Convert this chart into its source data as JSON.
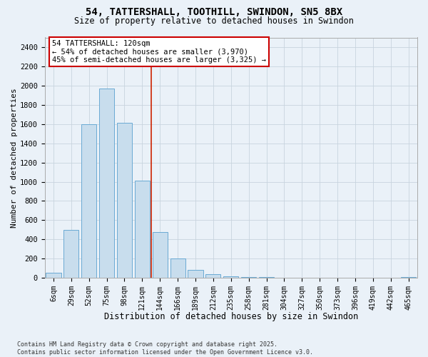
{
  "title": "54, TATTERSHALL, TOOTHILL, SWINDON, SN5 8BX",
  "subtitle": "Size of property relative to detached houses in Swindon",
  "xlabel": "Distribution of detached houses by size in Swindon",
  "ylabel": "Number of detached properties",
  "footnote": "Contains HM Land Registry data © Crown copyright and database right 2025.\nContains public sector information licensed under the Open Government Licence v3.0.",
  "bar_color": "#c8dded",
  "bar_edge_color": "#6aaad4",
  "background_color": "#eaf1f8",
  "grid_color": "#c8d4de",
  "annotation_text": "54 TATTERSHALL: 120sqm\n← 54% of detached houses are smaller (3,970)\n45% of semi-detached houses are larger (3,325) →",
  "annotation_box_facecolor": "white",
  "annotation_box_edgecolor": "#cc0000",
  "vline_color": "#cc2200",
  "categories": [
    "6sqm",
    "29sqm",
    "52sqm",
    "75sqm",
    "98sqm",
    "121sqm",
    "144sqm",
    "166sqm",
    "189sqm",
    "212sqm",
    "235sqm",
    "258sqm",
    "281sqm",
    "304sqm",
    "327sqm",
    "350sqm",
    "373sqm",
    "396sqm",
    "419sqm",
    "442sqm",
    "465sqm"
  ],
  "values": [
    55,
    500,
    1600,
    1970,
    1610,
    1010,
    480,
    200,
    85,
    40,
    20,
    10,
    8,
    4,
    2,
    2,
    1,
    0,
    0,
    0,
    10
  ],
  "ylim": [
    0,
    2500
  ],
  "yticks": [
    0,
    200,
    400,
    600,
    800,
    1000,
    1200,
    1400,
    1600,
    1800,
    2000,
    2200,
    2400
  ],
  "vline_x": 5.5,
  "title_fontsize": 10,
  "subtitle_fontsize": 8.5,
  "tick_fontsize": 7,
  "ylabel_fontsize": 8,
  "xlabel_fontsize": 8.5,
  "footnote_fontsize": 6
}
